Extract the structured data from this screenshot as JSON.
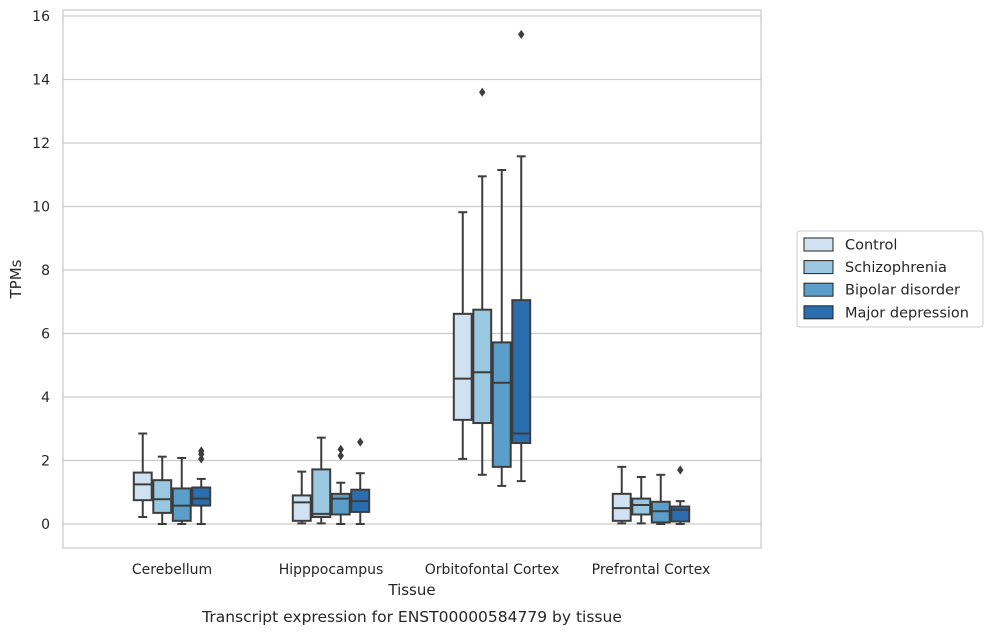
{
  "chart_data": {
    "type": "box",
    "caption": "Transcript expression for ENST00000584779 by tissue",
    "xlabel": "Tissue",
    "ylabel": "TPMs",
    "ylim": [
      -0.75,
      16.2
    ],
    "yticks": [
      0,
      2,
      4,
      6,
      8,
      10,
      12,
      14,
      16
    ],
    "grid": "horizontal",
    "legend_position": "right",
    "categories": [
      "Cerebellum",
      "Hipppocampus",
      "Orbitofontal Cortex",
      "Prefrontal Cortex"
    ],
    "series": [
      {
        "name": "Control",
        "color": "#d0e1f2",
        "boxes": [
          {
            "whislo": 0.22,
            "q1": 0.75,
            "med": 1.25,
            "q3": 1.62,
            "whishi": 2.85,
            "fliers": []
          },
          {
            "whislo": 0.02,
            "q1": 0.1,
            "med": 0.68,
            "q3": 0.9,
            "whishi": 1.65,
            "fliers": []
          },
          {
            "whislo": 2.05,
            "q1": 3.28,
            "med": 4.58,
            "q3": 6.62,
            "whishi": 9.82,
            "fliers": []
          },
          {
            "whislo": 0.02,
            "q1": 0.1,
            "med": 0.5,
            "q3": 0.95,
            "whishi": 1.8,
            "fliers": []
          }
        ]
      },
      {
        "name": "Schizophrenia",
        "color": "#9ac8e0",
        "boxes": [
          {
            "whislo": 0.0,
            "q1": 0.35,
            "med": 0.78,
            "q3": 1.38,
            "whishi": 2.12,
            "fliers": []
          },
          {
            "whislo": 0.02,
            "q1": 0.22,
            "med": 0.32,
            "q3": 1.72,
            "whishi": 2.72,
            "fliers": []
          },
          {
            "whislo": 1.55,
            "q1": 3.18,
            "med": 4.78,
            "q3": 6.75,
            "whishi": 10.95,
            "fliers": [
              13.6
            ]
          },
          {
            "whislo": 0.02,
            "q1": 0.3,
            "med": 0.6,
            "q3": 0.8,
            "whishi": 1.48,
            "fliers": []
          }
        ]
      },
      {
        "name": "Bipolar disorder",
        "color": "#5a9ec9",
        "boxes": [
          {
            "whislo": 0.0,
            "q1": 0.1,
            "med": 0.58,
            "q3": 1.12,
            "whishi": 2.08,
            "fliers": []
          },
          {
            "whislo": 0.0,
            "q1": 0.3,
            "med": 0.8,
            "q3": 0.95,
            "whishi": 1.3,
            "fliers": [
              2.15,
              2.35
            ]
          },
          {
            "whislo": 1.2,
            "q1": 1.8,
            "med": 4.45,
            "q3": 5.72,
            "whishi": 11.15,
            "fliers": []
          },
          {
            "whislo": 0.0,
            "q1": 0.05,
            "med": 0.4,
            "q3": 0.7,
            "whishi": 1.55,
            "fliers": []
          }
        ]
      },
      {
        "name": "Major depression",
        "color": "#2b6eb0",
        "boxes": [
          {
            "whislo": 0.0,
            "q1": 0.58,
            "med": 0.8,
            "q3": 1.15,
            "whishi": 1.42,
            "fliers": [
              2.05,
              2.2,
              2.3
            ]
          },
          {
            "whislo": 0.0,
            "q1": 0.38,
            "med": 0.72,
            "q3": 1.08,
            "whishi": 1.6,
            "fliers": [
              2.58
            ]
          },
          {
            "whislo": 1.35,
            "q1": 2.55,
            "med": 2.85,
            "q3": 7.05,
            "whishi": 11.58,
            "fliers": [
              15.42
            ]
          },
          {
            "whislo": 0.0,
            "q1": 0.08,
            "med": 0.45,
            "q3": 0.55,
            "whishi": 0.72,
            "fliers": [
              1.7
            ]
          }
        ]
      }
    ]
  }
}
